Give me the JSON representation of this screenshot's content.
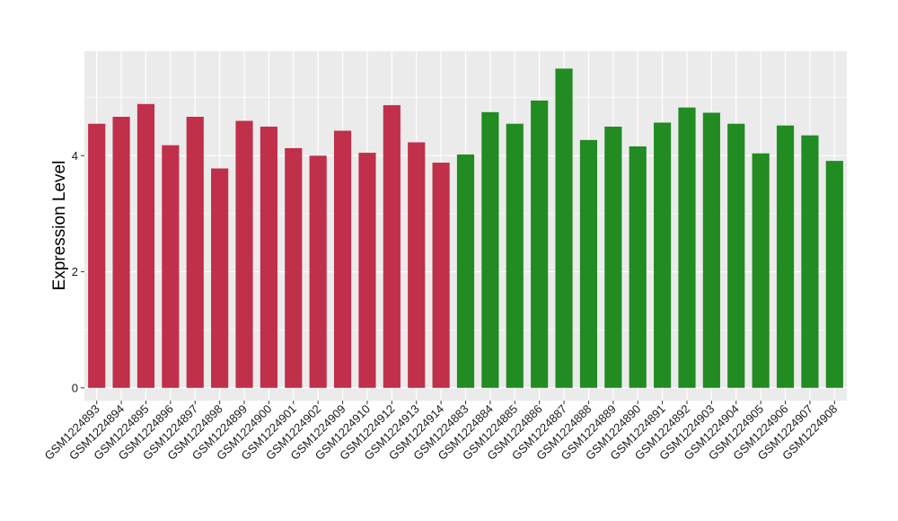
{
  "chart_data": {
    "type": "bar",
    "ylabel": "Expression Level",
    "xlabel": "",
    "ylim": [
      -0.22,
      5.8
    ],
    "yticks": [
      0,
      2,
      4
    ],
    "grid": true,
    "background": "#ebebeb",
    "gridColor": "#ffffff",
    "categories": [
      "GSM1224893",
      "GSM1224894",
      "GSM1224895",
      "GSM1224896",
      "GSM1224897",
      "GSM1224898",
      "GSM1224899",
      "GSM1224900",
      "GSM1224901",
      "GSM1224902",
      "GSM1224909",
      "GSM1224910",
      "GSM1224912",
      "GSM1224913",
      "GSM1224914",
      "GSM1224883",
      "GSM1224884",
      "GSM1224885",
      "GSM1224886",
      "GSM1224887",
      "GSM1224888",
      "GSM1224889",
      "GSM1224890",
      "GSM1224891",
      "GSM1224892",
      "GSM1224903",
      "GSM1224904",
      "GSM1224905",
      "GSM1224906",
      "GSM1224907",
      "GSM1224908"
    ],
    "values": [
      4.55,
      4.67,
      4.89,
      4.18,
      4.67,
      3.78,
      4.6,
      4.5,
      4.13,
      4.0,
      4.43,
      4.05,
      4.87,
      4.23,
      3.88,
      4.02,
      4.75,
      4.55,
      4.95,
      5.5,
      4.27,
      4.5,
      4.16,
      4.57,
      4.83,
      4.74,
      4.55,
      4.04,
      4.52,
      4.35,
      3.91
    ],
    "groups": [
      0,
      0,
      0,
      0,
      0,
      0,
      0,
      0,
      0,
      0,
      0,
      0,
      0,
      0,
      0,
      1,
      1,
      1,
      1,
      1,
      1,
      1,
      1,
      1,
      1,
      1,
      1,
      1,
      1,
      1,
      1
    ],
    "groupColors": [
      "#c0304a",
      "#228b22"
    ]
  }
}
